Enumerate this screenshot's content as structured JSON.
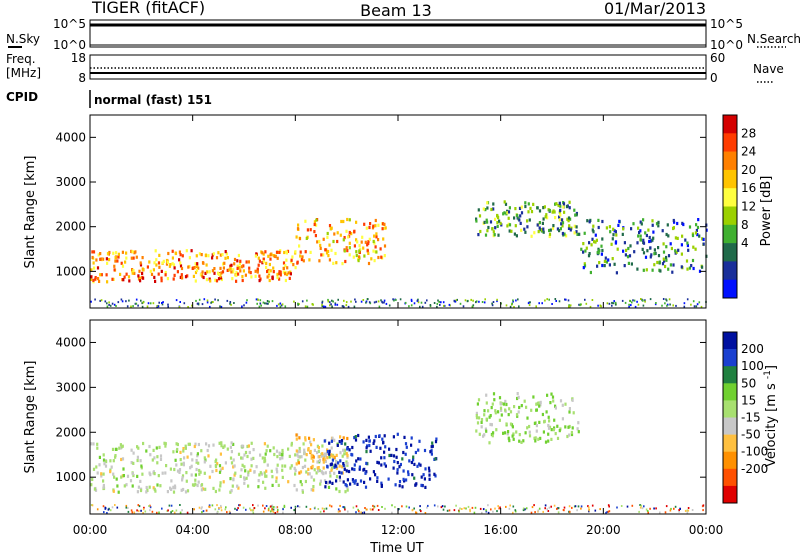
{
  "header": {
    "radar": "TIGER (fitACF)",
    "beam": "Beam 13",
    "date": "01/Mar/2013"
  },
  "panels": {
    "nsky": {
      "left_label": "N.Sky",
      "right_label": "N.Search",
      "left_ticks": [
        "10^5",
        "10^0"
      ],
      "right_ticks": [
        "10^5",
        "10^0"
      ]
    },
    "freq": {
      "left_label_line1": "Freq.",
      "left_label_line2": "[MHz]",
      "right_label": "Nave",
      "left_ticks": [
        "18",
        "8"
      ],
      "right_ticks": [
        "60",
        "0"
      ]
    },
    "cpid": {
      "label": "CPID",
      "value": "normal (fast) 151"
    }
  },
  "chart_data": [
    {
      "type": "heatmap",
      "parameter": "Power",
      "ylabel": "Slant Range [km]",
      "yticks": [
        1000,
        2000,
        3000,
        4000
      ],
      "ylim": [
        180,
        4500
      ],
      "xlim": [
        "00:00",
        "24:00"
      ],
      "colorbar": {
        "label": "Power [dB]",
        "ticks": [
          "28",
          "24",
          "20",
          "16",
          "12",
          "8",
          "4"
        ],
        "colors": [
          "#d40000",
          "#ff3c00",
          "#ff8000",
          "#ffc400",
          "#ffff40",
          "#9bd000",
          "#40b030",
          "#206a4a",
          "#1a2f9a",
          "#0010ff"
        ],
        "range": [
          0,
          30
        ]
      },
      "features": [
        {
          "name": "Near-range band",
          "start_time": "00:00",
          "end_time": "08:00",
          "range_km": [
            800,
            1500
          ],
          "power_db": 22
        },
        {
          "name": "Rising branch",
          "start_time": "08:00",
          "end_time": "11:30",
          "range_km": [
            1200,
            2200
          ],
          "power_db": 20
        },
        {
          "name": "Arc to ~2600 km",
          "start_time": "15:00",
          "end_time": "19:00",
          "range_km": [
            1800,
            2600
          ],
          "power_db": 10
        },
        {
          "name": "Descending arc",
          "start_time": "19:00",
          "end_time": "24:00",
          "range_km": [
            1000,
            2200
          ],
          "power_db": 8
        }
      ]
    },
    {
      "type": "heatmap",
      "parameter": "Velocity",
      "ylabel": "Slant Range [km]",
      "yticks": [
        1000,
        2000,
        3000,
        4000
      ],
      "ylim": [
        180,
        4500
      ],
      "xlim": [
        "00:00",
        "24:00"
      ],
      "xticks": [
        "00:00",
        "04:00",
        "08:00",
        "12:00",
        "16:00",
        "20:00",
        "00:00"
      ],
      "xlabel": "Time UT",
      "colorbar": {
        "label": "Velocity [m s^-1]",
        "ticks": [
          "200",
          "100",
          "50",
          "15",
          "-15",
          "-50",
          "-100",
          "-200"
        ],
        "colors": [
          "#0010a0",
          "#1a40d0",
          "#208040",
          "#70d030",
          "#a8e070",
          "#c8c8c8",
          "#ffc040",
          "#ff9000",
          "#ff5000",
          "#e00000"
        ],
        "range": [
          -250,
          250
        ]
      },
      "features": [
        {
          "name": "Ground scatter band",
          "start_time": "00:00",
          "end_time": "10:00",
          "range_km": [
            700,
            1800
          ],
          "velocity_ms": 0
        },
        {
          "name": "Orange patch",
          "start_time": "08:00",
          "end_time": "10:00",
          "range_km": [
            1100,
            2000
          ],
          "velocity_ms": -60
        },
        {
          "name": "Blue patches",
          "start_time": "09:00",
          "end_time": "13:30",
          "range_km": [
            800,
            2000
          ],
          "velocity_ms": 200
        },
        {
          "name": "Green arc",
          "start_time": "15:00",
          "end_time": "19:00",
          "range_km": [
            1800,
            2900
          ],
          "velocity_ms": 40
        }
      ]
    }
  ]
}
